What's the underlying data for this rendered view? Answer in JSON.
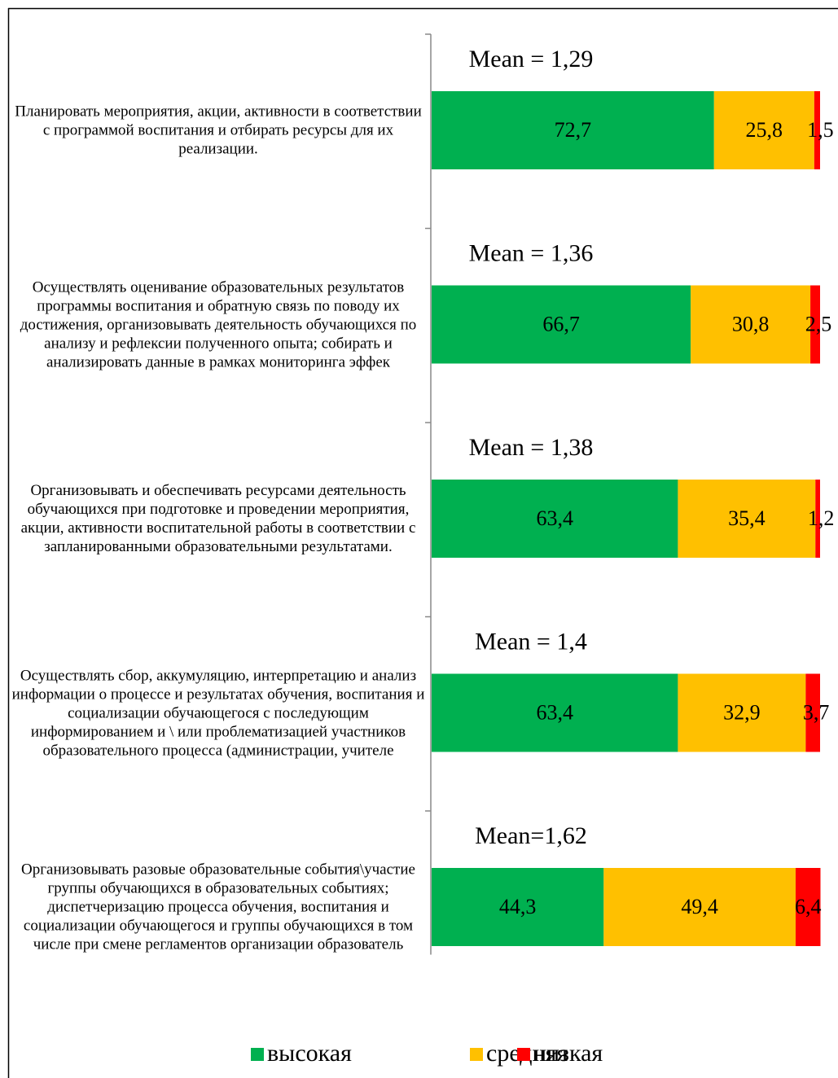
{
  "chart_data": {
    "type": "bar",
    "orientation": "horizontal",
    "stacked": true,
    "categories": [
      "Планировать мероприятия, акции, активности в соответствии с программой воспитания и отбирать ресурсы для их реализации.",
      "Осуществлять оценивание образовательных результатов программы воспитания и обратную связь по поводу их достижения, организовывать деятельность обучающихся по анализу и рефлексии полученного опыта; собирать и анализировать данные в рамках мониторинга эффек",
      "Организовывать и обеспечивать ресурсами деятельность обучающихся при подготовке и проведении мероприятия, акции, активности воспитательной работы в соответствии с запланированными образовательными результатами.",
      "Осуществлять сбор, аккумуляцию, интерпретацию и анализ информации о процессе и результатах обучения, воспитания и социализации обучающегося с последующим информированием и \\ или проблематизацией участников образовательного процесса (администрации, учителе",
      "Организовывать разовые образовательные события\\участие группы обучающихся в образовательных событиях; диспетчеризацию процесса обучения, воспитания и социализации обучающегося и группы обучающихся в том числе при смене регламентов организации образователь"
    ],
    "annotations": [
      "Mean = 1,29",
      "Mean = 1,36",
      "Mean = 1,38",
      "Mean = 1,4",
      "Mean=1,62"
    ],
    "series": [
      {
        "name": "высокая",
        "color": "#00b050",
        "values": [
          72.7,
          66.7,
          63.4,
          63.4,
          44.3
        ],
        "value_labels": [
          "72,7",
          "66,7",
          "63,4",
          "63,4",
          "44,3"
        ]
      },
      {
        "name": "средняя",
        "color": "#ffc000",
        "values": [
          25.8,
          30.8,
          35.4,
          32.9,
          49.4
        ],
        "value_labels": [
          "25,8",
          "30,8",
          "35,4",
          "32,9",
          "49,4"
        ]
      },
      {
        "name": "низкая",
        "color": "#ff0000",
        "values": [
          1.5,
          2.5,
          1.2,
          3.7,
          6.4
        ],
        "value_labels": [
          "1,5",
          "2,5",
          "1,2",
          "3,7",
          "6,4"
        ]
      }
    ],
    "legend": "bottom"
  }
}
